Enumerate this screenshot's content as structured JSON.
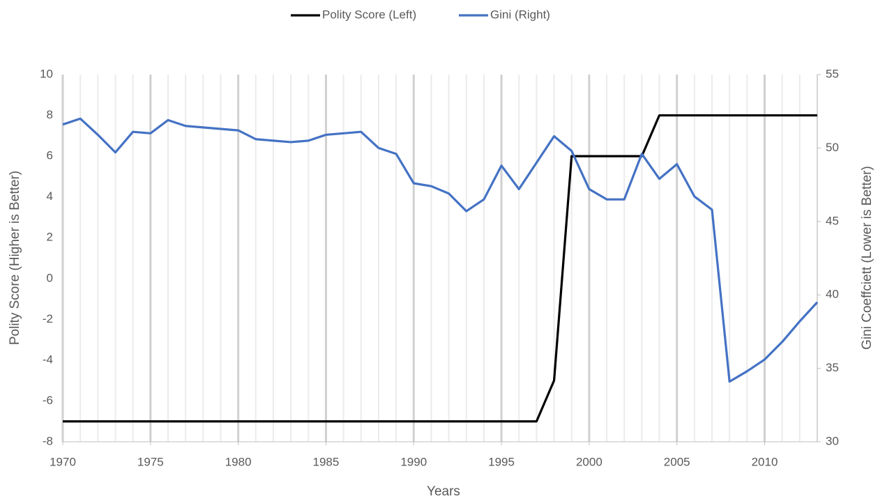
{
  "chart_data": {
    "type": "line",
    "x": [
      1970,
      1971,
      1972,
      1973,
      1974,
      1975,
      1976,
      1977,
      1978,
      1979,
      1980,
      1981,
      1982,
      1983,
      1984,
      1985,
      1986,
      1987,
      1988,
      1989,
      1990,
      1991,
      1992,
      1993,
      1994,
      1995,
      1996,
      1997,
      1998,
      1999,
      2000,
      2001,
      2002,
      2003,
      2004,
      2005,
      2006,
      2007,
      2008,
      2009,
      2010,
      2011,
      2012,
      2013
    ],
    "series": [
      {
        "name": "Polity Score (Left)",
        "color": "#000000",
        "values": [
          -7,
          -7,
          -7,
          -7,
          -7,
          -7,
          -7,
          -7,
          -7,
          -7,
          -7,
          -7,
          -7,
          -7,
          -7,
          -7,
          -7,
          -7,
          -7,
          -7,
          -7,
          -7,
          -7,
          -7,
          -7,
          -7,
          -7,
          -7,
          -5,
          6,
          6,
          6,
          6,
          6,
          8,
          8,
          8,
          8,
          8,
          8,
          8,
          8,
          8,
          8
        ]
      },
      {
        "name": "Gini (Right)",
        "color": "#4472c4",
        "axis": "y2",
        "values": [
          51.6,
          52.0,
          50.9,
          49.7,
          51.1,
          51.0,
          51.9,
          51.5,
          51.4,
          51.3,
          51.2,
          50.6,
          50.5,
          50.4,
          50.5,
          50.9,
          51.0,
          51.1,
          50.0,
          49.6,
          47.6,
          47.4,
          46.9,
          45.7,
          46.5,
          48.8,
          47.2,
          49.0,
          50.8,
          49.8,
          47.2,
          46.5,
          46.5,
          49.6,
          47.9,
          48.9,
          46.7,
          45.8,
          34.1,
          34.8,
          35.6,
          36.8,
          38.2,
          39.5
        ]
      }
    ],
    "x_label": "Years",
    "y_label": "Polity Score (Higher is Better)",
    "y2_label": "Gini Coeffciett (Lower is Better)",
    "xlim": [
      1970,
      2013
    ],
    "xticks": [
      1970,
      1975,
      1980,
      1985,
      1990,
      1995,
      2000,
      2005,
      2010
    ],
    "ylim": [
      -8,
      10
    ],
    "yticks": [
      -8,
      -6,
      -4,
      -2,
      0,
      2,
      4,
      6,
      8,
      10
    ],
    "y2lim": [
      30,
      55
    ],
    "y2ticks": [
      30,
      35,
      40,
      45,
      50,
      55
    ],
    "grid": "x",
    "legend": "top"
  }
}
